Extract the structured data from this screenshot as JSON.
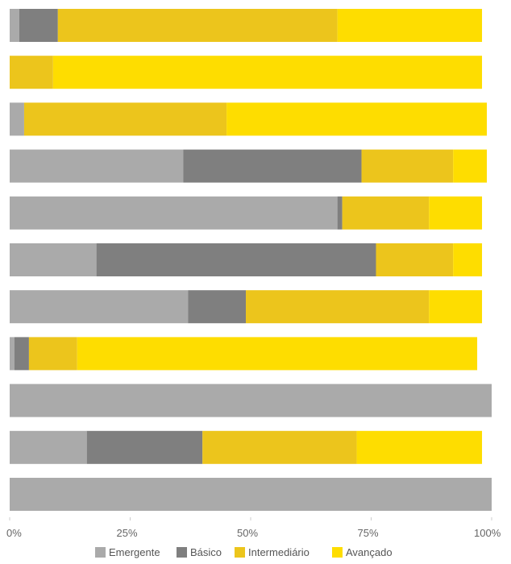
{
  "chart_data": {
    "type": "bar",
    "orientation": "horizontal",
    "stacked": true,
    "title": "",
    "xlabel": "",
    "ylabel": "",
    "xlim": [
      0,
      100
    ],
    "x_ticks": [
      "0%",
      "25%",
      "50%",
      "75%",
      "100%"
    ],
    "grid": false,
    "legend_position": "bottom",
    "series": [
      {
        "name": "Emergente",
        "color": "#aaaaaa",
        "values": [
          2,
          0,
          3,
          36,
          68,
          18,
          37,
          1,
          100,
          16,
          100
        ]
      },
      {
        "name": "Básico",
        "color": "#7f7f7f",
        "values": [
          8,
          0,
          0,
          37,
          1,
          58,
          12,
          3,
          0,
          24,
          0
        ]
      },
      {
        "name": "Intermediário",
        "color": "#ecc51c",
        "values": [
          58,
          9,
          42,
          19,
          18,
          16,
          38,
          10,
          0,
          32,
          0
        ]
      },
      {
        "name": "Avançado",
        "color": "#fedd00",
        "values": [
          30,
          89,
          54,
          7,
          11,
          6,
          11,
          83,
          0,
          26,
          0
        ]
      }
    ]
  }
}
